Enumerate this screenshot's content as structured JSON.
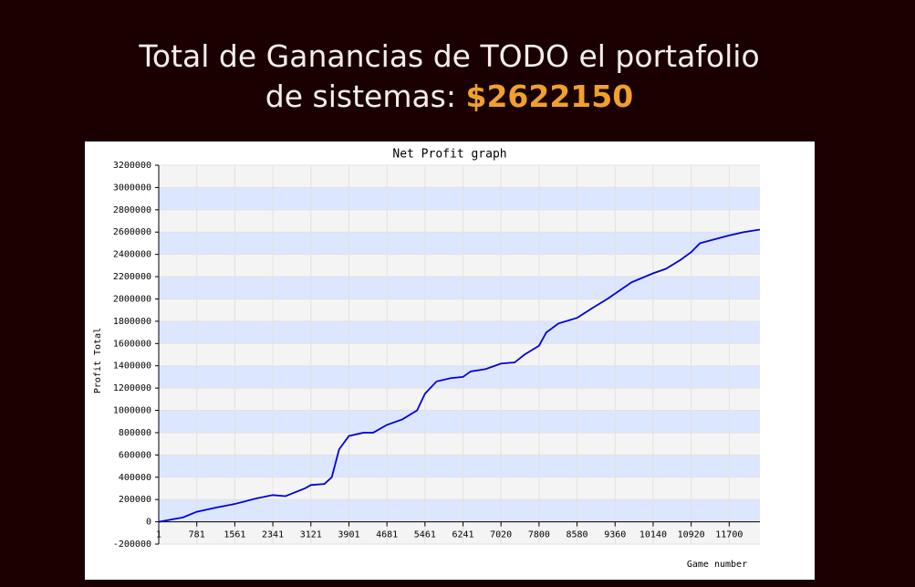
{
  "header": {
    "title": "Total de Ganancias de TODO el portafolio de sistemas:",
    "amount": "$2622150"
  },
  "chart_data": {
    "type": "line",
    "title": "Net Profit graph",
    "x_label": "Game number",
    "y_label": "Profit Total",
    "x": [
      1,
      500,
      781,
      1200,
      1561,
      2000,
      2341,
      2600,
      3000,
      3121,
      3400,
      3550,
      3700,
      3901,
      4200,
      4400,
      4681,
      5000,
      5300,
      5461,
      5700,
      6000,
      6241,
      6400,
      6700,
      7020,
      7300,
      7500,
      7800,
      7950,
      8200,
      8580,
      8900,
      9200,
      9700,
      10140,
      10400,
      10700,
      10920,
      11100,
      11700,
      12000,
      12330
    ],
    "series": [
      {
        "color": "#0000dd",
        "values": [
          0,
          40000,
          90000,
          130000,
          160000,
          210000,
          240000,
          230000,
          300000,
          330000,
          340000,
          400000,
          650000,
          770000,
          800000,
          800000,
          870000,
          920000,
          1000000,
          1150000,
          1260000,
          1290000,
          1300000,
          1350000,
          1370000,
          1420000,
          1430000,
          1500000,
          1580000,
          1700000,
          1780000,
          1830000,
          1920000,
          2000000,
          2150000,
          2230000,
          2270000,
          2350000,
          2420000,
          2500000,
          2570000,
          2600000,
          2622150
        ]
      }
    ],
    "xlim": [
      1,
      12330
    ],
    "xticks": [
      1,
      781,
      1561,
      2341,
      3121,
      3901,
      4681,
      5461,
      6241,
      7020,
      7800,
      8580,
      9360,
      10140,
      10920,
      11700
    ],
    "ylim": [
      -200000,
      3200000
    ],
    "yticks": [
      -200000,
      0,
      200000,
      400000,
      600000,
      800000,
      1000000,
      1200000,
      1400000,
      1600000,
      1800000,
      2000000,
      2200000,
      2400000,
      2600000,
      2800000,
      3000000,
      3200000
    ],
    "grid": true
  }
}
